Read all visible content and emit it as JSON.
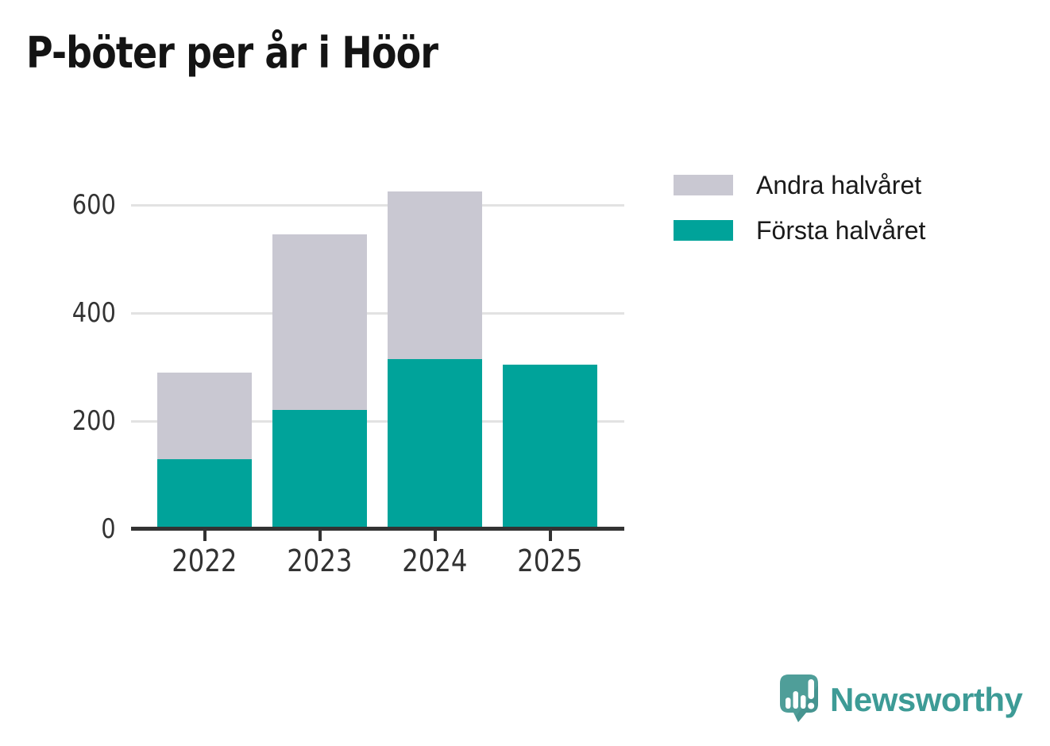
{
  "chart_data": {
    "type": "bar",
    "stacked": true,
    "title": "P-böter per år i Höör",
    "categories": [
      "2022",
      "2023",
      "2024",
      "2025"
    ],
    "series": [
      {
        "name": "Första halvåret",
        "color": "#00a39a",
        "values": [
          130,
          220,
          315,
          305
        ]
      },
      {
        "name": "Andra halvåret",
        "color": "#c9c8d2",
        "values": [
          160,
          325,
          310,
          0
        ]
      }
    ],
    "xlabel": "",
    "ylabel": "",
    "yticks": [
      0,
      200,
      400,
      600
    ],
    "ylim": [
      0,
      640
    ],
    "grid": true,
    "legend_position": "upper-right-outside",
    "axis_color": "#333333",
    "gridline_color": "#e2e2e2",
    "tick_label_color": "#333333"
  },
  "legend": {
    "items": [
      {
        "label": "Andra halvåret",
        "color": "#c9c8d2"
      },
      {
        "label": "Första halvåret",
        "color": "#00a39a"
      }
    ]
  },
  "branding": {
    "name": "Newsworthy",
    "logo_icon": "speech-bubble-bar-chart-icon",
    "text_color": "#3d9b96",
    "bubble_color": "#4f9e99",
    "bubble_shade_color": "#3f8d89"
  }
}
